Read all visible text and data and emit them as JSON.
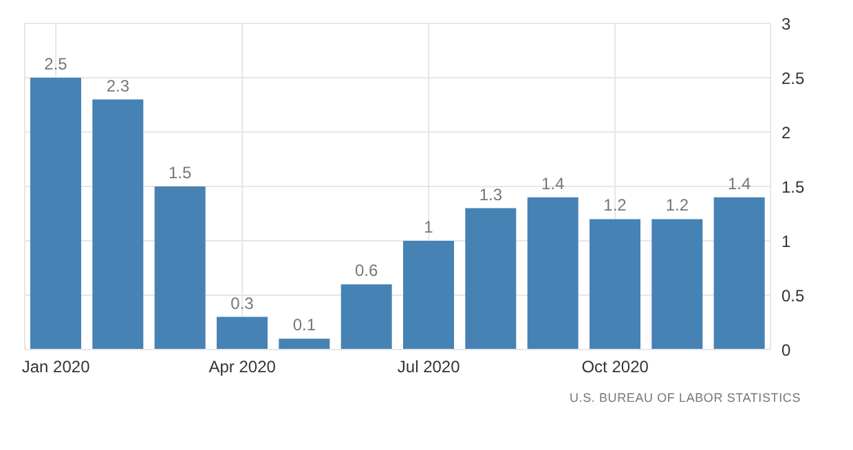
{
  "chart_data": {
    "type": "bar",
    "categories": [
      "Jan 2020",
      null,
      null,
      "Apr 2020",
      null,
      null,
      "Jul 2020",
      null,
      null,
      "Oct 2020",
      null,
      null
    ],
    "values": [
      2.5,
      2.3,
      1.5,
      0.3,
      0.1,
      0.6,
      1,
      1.3,
      1.4,
      1.2,
      1.2,
      1.4
    ],
    "color": "#4682b4",
    "ylim": [
      0,
      3
    ],
    "yticks": [
      0,
      0.5,
      1,
      1.5,
      2,
      2.5,
      3
    ],
    "grid": true,
    "data_labels": true,
    "annotations": [
      "U.S. BUREAU OF LABOR STATISTICS"
    ]
  }
}
